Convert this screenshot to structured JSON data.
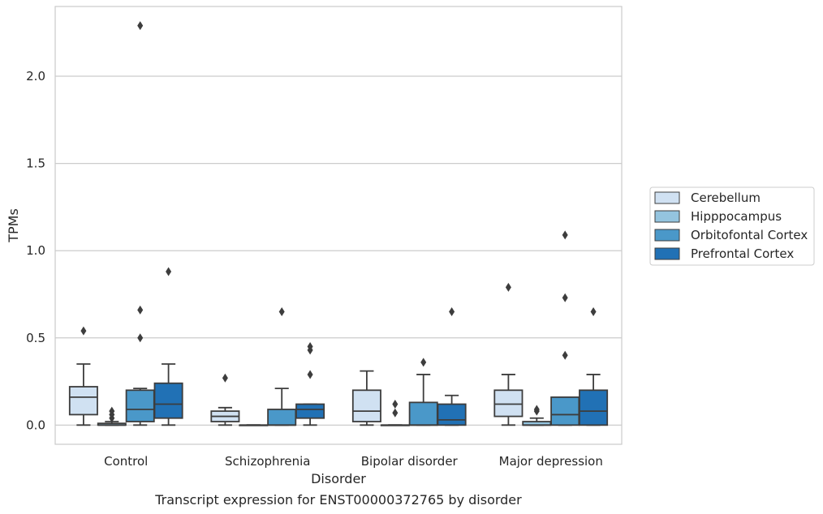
{
  "chart_data": {
    "type": "box",
    "title": "",
    "caption": "Transcript expression for ENST00000372765 by disorder",
    "xlabel": "Disorder",
    "ylabel": "TPMs",
    "ylim": [
      -0.11,
      2.4
    ],
    "yticks": [
      0.0,
      0.5,
      1.0,
      1.5,
      2.0
    ],
    "ytick_labels": [
      "0.0",
      "0.5",
      "1.0",
      "1.5",
      "2.0"
    ],
    "grid": "horizontal",
    "legend_position": "right",
    "categories": [
      "Control",
      "Schizophrenia",
      "Bipolar disorder",
      "Major depression"
    ],
    "series": [
      {
        "name": "Cerebellum",
        "color": "#d0e1f2",
        "boxes": [
          {
            "whisker_low": 0.0,
            "q1": 0.06,
            "median": 0.16,
            "q3": 0.22,
            "whisker_high": 0.35,
            "outliers": [
              0.54
            ]
          },
          {
            "whisker_low": 0.0,
            "q1": 0.02,
            "median": 0.05,
            "q3": 0.08,
            "whisker_high": 0.1,
            "outliers": [
              0.27
            ]
          },
          {
            "whisker_low": 0.0,
            "q1": 0.02,
            "median": 0.08,
            "q3": 0.2,
            "whisker_high": 0.31,
            "outliers": []
          },
          {
            "whisker_low": 0.0,
            "q1": 0.05,
            "median": 0.12,
            "q3": 0.2,
            "whisker_high": 0.29,
            "outliers": [
              0.79
            ]
          }
        ]
      },
      {
        "name": "Hipppocampus",
        "color": "#94c4df",
        "boxes": [
          {
            "whisker_low": 0.0,
            "q1": 0.0,
            "median": 0.0,
            "q3": 0.01,
            "whisker_high": 0.02,
            "outliers": [
              0.04,
              0.06,
              0.08
            ]
          },
          {
            "whisker_low": 0.0,
            "q1": 0.0,
            "median": 0.0,
            "q3": 0.0,
            "whisker_high": 0.0,
            "outliers": []
          },
          {
            "whisker_low": 0.0,
            "q1": 0.0,
            "median": 0.0,
            "q3": 0.0,
            "whisker_high": 0.0,
            "outliers": [
              0.07,
              0.12
            ]
          },
          {
            "whisker_low": 0.0,
            "q1": 0.0,
            "median": 0.0,
            "q3": 0.02,
            "whisker_high": 0.04,
            "outliers": [
              0.08,
              0.09
            ]
          }
        ]
      },
      {
        "name": "Orbitofontal Cortex",
        "color": "#4a98c9",
        "boxes": [
          {
            "whisker_low": 0.0,
            "q1": 0.02,
            "median": 0.09,
            "q3": 0.2,
            "whisker_high": 0.21,
            "outliers": [
              0.5,
              0.66,
              2.29
            ]
          },
          {
            "whisker_low": 0.0,
            "q1": 0.0,
            "median": 0.0,
            "q3": 0.09,
            "whisker_high": 0.21,
            "outliers": [
              0.65
            ]
          },
          {
            "whisker_low": 0.0,
            "q1": 0.0,
            "median": 0.0,
            "q3": 0.13,
            "whisker_high": 0.29,
            "outliers": [
              0.36
            ]
          },
          {
            "whisker_low": 0.0,
            "q1": 0.0,
            "median": 0.06,
            "q3": 0.16,
            "whisker_high": 0.16,
            "outliers": [
              0.4,
              0.73,
              1.09
            ]
          }
        ]
      },
      {
        "name": "Prefrontal Cortex",
        "color": "#2171b5",
        "boxes": [
          {
            "whisker_low": 0.0,
            "q1": 0.04,
            "median": 0.12,
            "q3": 0.24,
            "whisker_high": 0.35,
            "outliers": [
              0.88
            ]
          },
          {
            "whisker_low": 0.0,
            "q1": 0.04,
            "median": 0.09,
            "q3": 0.12,
            "whisker_high": 0.12,
            "outliers": [
              0.29,
              0.43,
              0.45
            ]
          },
          {
            "whisker_low": 0.0,
            "q1": 0.0,
            "median": 0.03,
            "q3": 0.12,
            "whisker_high": 0.17,
            "outliers": [
              0.65
            ]
          },
          {
            "whisker_low": 0.0,
            "q1": 0.0,
            "median": 0.08,
            "q3": 0.2,
            "whisker_high": 0.29,
            "outliers": [
              0.65
            ]
          }
        ]
      }
    ]
  }
}
